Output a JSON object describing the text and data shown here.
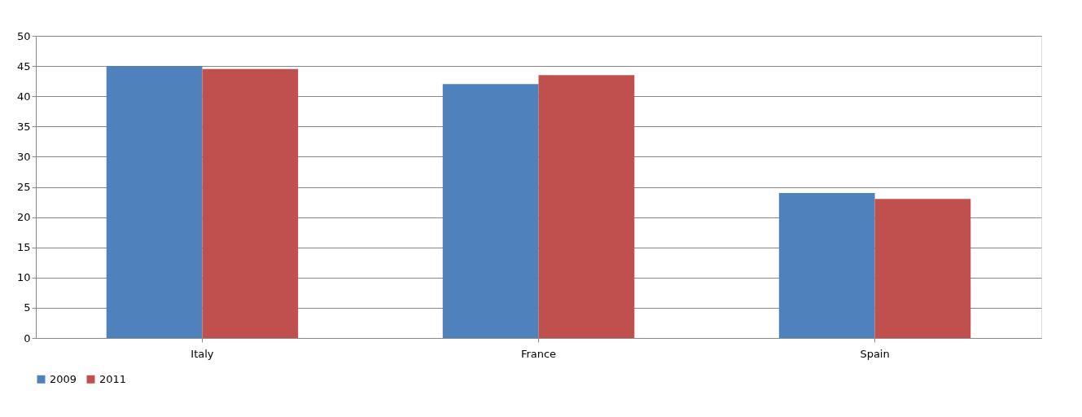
{
  "chart_data": {
    "type": "bar",
    "categories": [
      "Italy",
      "France",
      "Spain"
    ],
    "series": [
      {
        "name": "2009",
        "color": "#4f81bd",
        "values": [
          45,
          42,
          24
        ]
      },
      {
        "name": "2011",
        "color": "#c0504d",
        "values": [
          44.5,
          43.5,
          23
        ]
      }
    ],
    "ylim": [
      0,
      50
    ],
    "yticks": [
      0,
      5,
      10,
      15,
      20,
      25,
      30,
      35,
      40,
      45,
      50
    ],
    "grid": "y",
    "legend": "bottom"
  }
}
